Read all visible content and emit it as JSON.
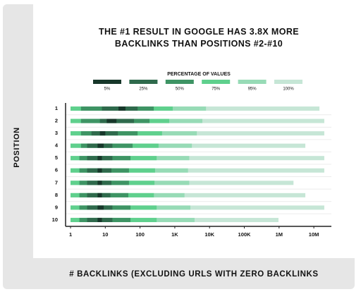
{
  "chart_data": {
    "type": "range-bar",
    "title": "THE #1 RESULT IN GOOGLE HAS 3.8X MORE BACKLINKS THAN POSITIONS #2-#10",
    "legend_title": "PERCENTAGE OF VALUES",
    "x_label": "# BACKLINKS (EXCLUDING URLS WITH ZERO BACKLINKS",
    "y_label": "POSITION",
    "categories": [
      "1",
      "2",
      "3",
      "4",
      "5",
      "6",
      "7",
      "8",
      "9",
      "10"
    ],
    "x_log": true,
    "xlim": [
      0.72,
      32000000
    ],
    "xticks": [
      1,
      10,
      100,
      {
        "value": 1000,
        "label": "1K"
      },
      {
        "value": 10000,
        "label": "10K"
      },
      {
        "value": 100000,
        "label": "100K"
      },
      {
        "value": 1000000,
        "label": "1M"
      },
      {
        "value": 10000000,
        "label": "10M"
      }
    ],
    "grid": true,
    "series": [
      {
        "name": "5%",
        "color": "#17372a",
        "low": [
          24,
          11,
          7,
          6,
          6,
          6,
          6,
          6,
          6,
          6
        ],
        "high": [
          38,
          21,
          10,
          9,
          8,
          8,
          8,
          8,
          9,
          8
        ]
      },
      {
        "name": "25%",
        "color": "#2f6a4c",
        "low": [
          8,
          7,
          4,
          3,
          3,
          3,
          3,
          3,
          3,
          3
        ],
        "high": [
          85,
          67,
          23,
          16,
          16,
          15,
          15,
          14,
          16,
          16
        ]
      },
      {
        "name": "50%",
        "color": "#3e9464",
        "low": [
          2,
          2,
          2,
          2,
          1.8,
          1.8,
          1.8,
          1.8,
          1.8,
          1.8
        ],
        "high": [
          248,
          187,
          85,
          61,
          53,
          48,
          48,
          46,
          53,
          53
        ]
      },
      {
        "name": "75%",
        "color": "#5fd08d",
        "low": [
          1,
          1,
          1,
          1,
          1,
          1,
          1,
          1,
          1,
          1
        ],
        "high": [
          870,
          690,
          430,
          340,
          300,
          270,
          260,
          250,
          300,
          300
        ]
      },
      {
        "name": "95%",
        "color": "#97dbb6",
        "low": [
          1,
          1,
          1,
          1,
          1,
          1,
          1,
          1,
          1,
          1
        ],
        "high": [
          7900,
          6200,
          4300,
          3100,
          2600,
          2400,
          2600,
          1900,
          2800,
          3700
        ]
      },
      {
        "name": "100%",
        "color": "#c6e6d6",
        "low": [
          1,
          1,
          1,
          1,
          1,
          1,
          1,
          1,
          1,
          1
        ],
        "high": [
          14500000,
          20000000,
          20000000,
          5700000,
          20000000,
          20000000,
          2600000,
          5700000,
          20000000,
          960000
        ]
      }
    ]
  }
}
